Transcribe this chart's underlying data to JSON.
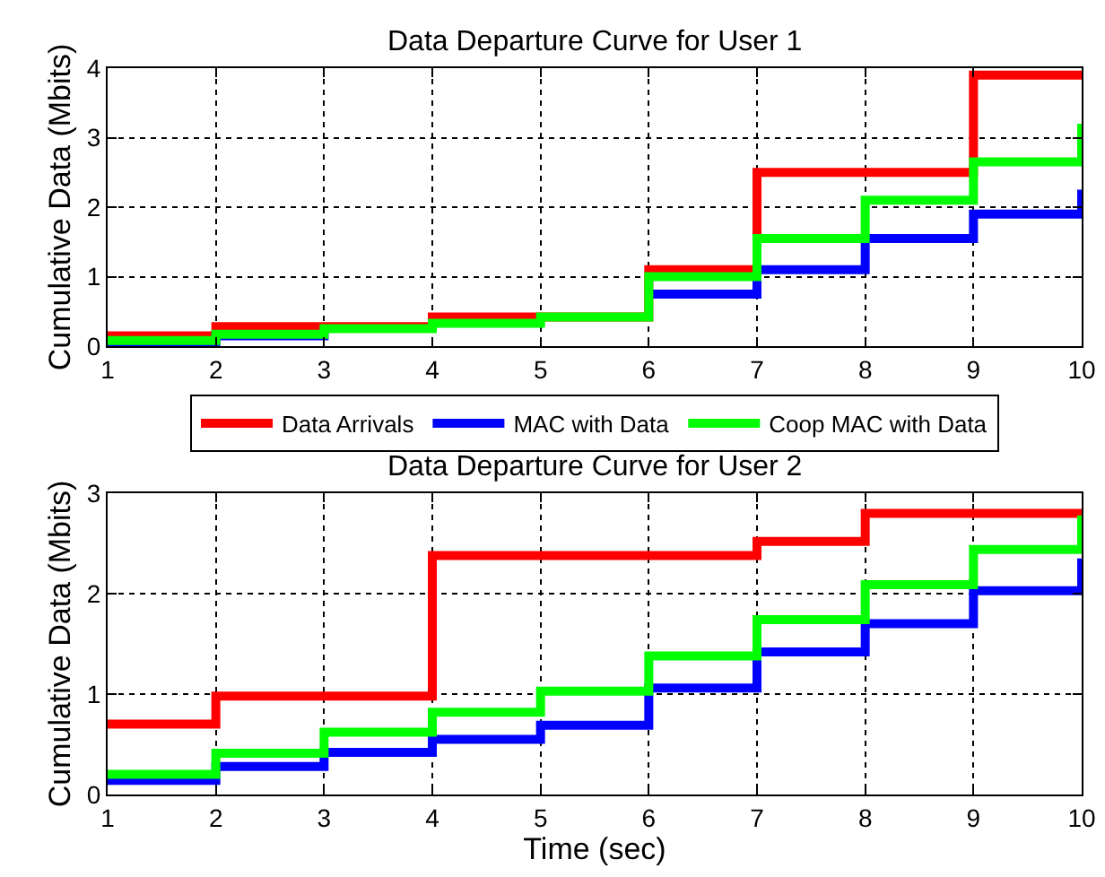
{
  "chart_data": [
    {
      "type": "step",
      "title": "Data Departure Curve for User 1",
      "ylabel": "Cumulative Data (Mbits)",
      "x": [
        1,
        2,
        3,
        4,
        5,
        6,
        7,
        8,
        9,
        10
      ],
      "xlim": [
        1,
        10
      ],
      "xticks": [
        1,
        2,
        3,
        4,
        5,
        6,
        7,
        8,
        9,
        10
      ],
      "ylim": [
        0,
        4
      ],
      "yticks": [
        0,
        1,
        2,
        3,
        4
      ],
      "grid": true,
      "legend": "bottom",
      "series": [
        {
          "name": "Data Arrivals",
          "color": "#ff0000",
          "values": [
            0.15,
            0.28,
            0.28,
            0.42,
            0.42,
            1.1,
            2.5,
            2.5,
            3.9,
            3.9
          ]
        },
        {
          "name": "MAC with Data",
          "color": "#0000ff",
          "values": [
            0.05,
            0.15,
            0.25,
            null,
            null,
            0.75,
            1.1,
            1.55,
            1.9,
            2.25
          ]
        },
        {
          "name": "Coop MAC with Data",
          "color": "#00ff00",
          "values": [
            0.08,
            0.17,
            0.25,
            0.33,
            0.42,
            1.0,
            1.55,
            2.1,
            2.65,
            3.2
          ]
        }
      ]
    },
    {
      "type": "step",
      "title": "Data Departure Curve for User 2",
      "xlabel": "Time (sec)",
      "ylabel": "Cumulative Data (Mbits)",
      "x": [
        1,
        2,
        3,
        4,
        5,
        6,
        7,
        8,
        9,
        10
      ],
      "xlim": [
        1,
        10
      ],
      "xticks": [
        1,
        2,
        3,
        4,
        5,
        6,
        7,
        8,
        9,
        10
      ],
      "ylim": [
        0,
        3
      ],
      "yticks": [
        0,
        1,
        2,
        3
      ],
      "grid": true,
      "series": [
        {
          "color": "#ff0000",
          "values": [
            0.7,
            0.98,
            0.98,
            2.38,
            2.38,
            2.38,
            2.52,
            2.8,
            2.8,
            2.8
          ]
        },
        {
          "color": "#0000ff",
          "values": [
            0.14,
            0.28,
            0.42,
            0.55,
            0.69,
            1.06,
            1.42,
            1.7,
            2.03,
            2.35
          ]
        },
        {
          "color": "#00ff00",
          "values": [
            0.2,
            0.41,
            0.62,
            0.82,
            1.03,
            1.38,
            1.74,
            2.09,
            2.44,
            2.78
          ]
        }
      ]
    }
  ]
}
